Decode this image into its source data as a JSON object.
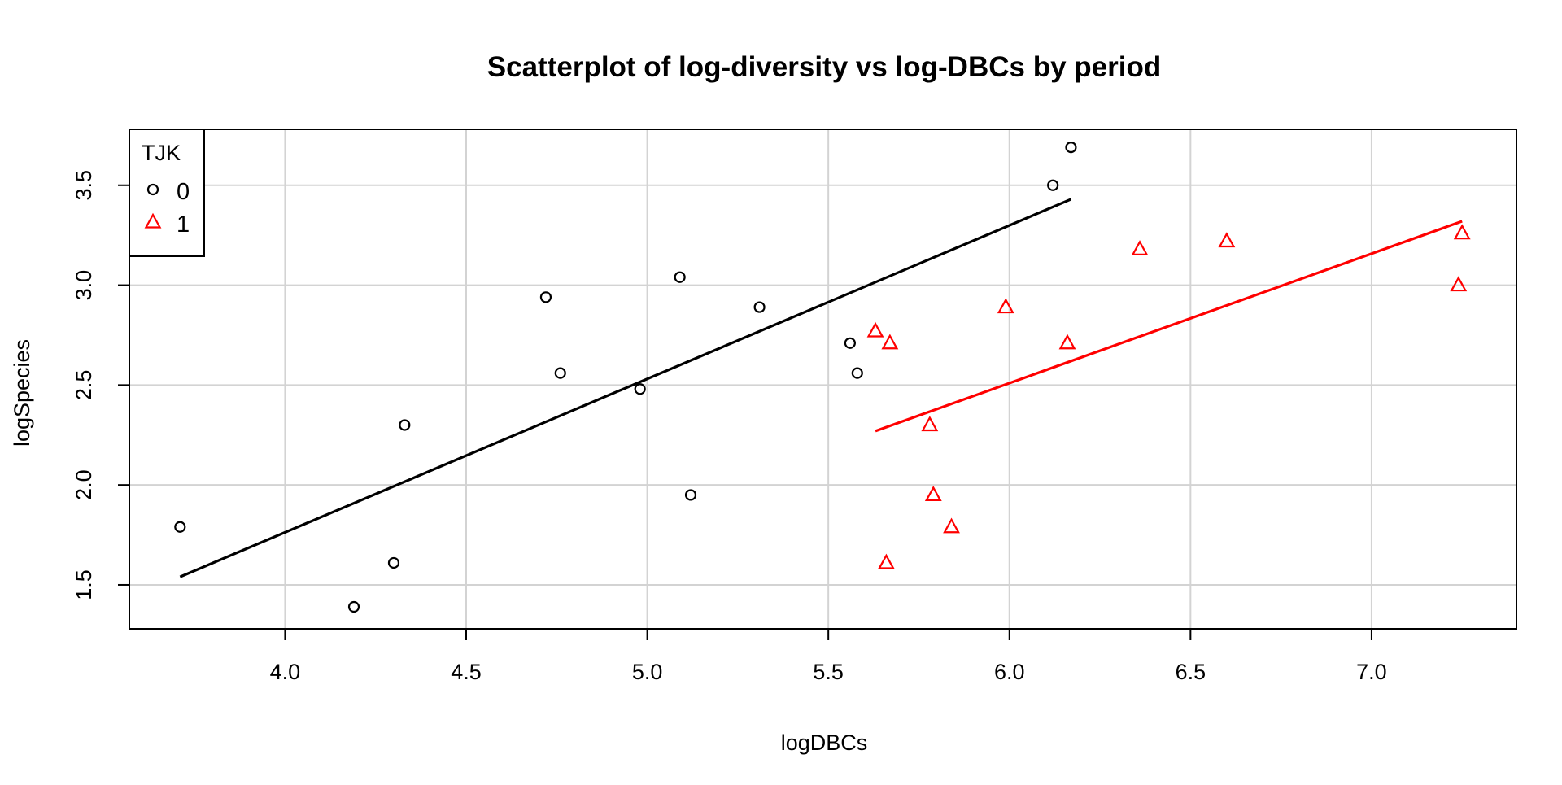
{
  "chart_data": {
    "type": "scatter",
    "title": "Scatterplot of log-diversity vs log-DBCs by period",
    "xlabel": "logDBCs",
    "ylabel": "logSpecies",
    "xlim": [
      3.57,
      7.4
    ],
    "ylim": [
      1.28,
      3.78
    ],
    "x_ticks": [
      4.0,
      4.5,
      5.0,
      5.5,
      6.0,
      6.5,
      7.0
    ],
    "x_tick_labels": [
      "4.0",
      "4.5",
      "5.0",
      "5.5",
      "6.0",
      "6.5",
      "7.0"
    ],
    "y_ticks": [
      1.5,
      2.0,
      2.5,
      3.0,
      3.5
    ],
    "y_tick_labels": [
      "1.5",
      "2.0",
      "2.5",
      "3.0",
      "3.5"
    ],
    "grid": true,
    "legend": {
      "title": "TJK",
      "position": "top-left"
    },
    "series": [
      {
        "name": "0",
        "color": "#000000",
        "marker": "circle",
        "x": [
          3.71,
          4.19,
          4.3,
          4.33,
          4.72,
          4.76,
          4.98,
          5.09,
          5.12,
          5.31,
          5.56,
          5.58,
          6.12,
          6.17
        ],
        "y": [
          1.79,
          1.39,
          1.61,
          2.3,
          2.94,
          2.56,
          2.48,
          3.04,
          1.95,
          2.89,
          2.71,
          2.56,
          3.5,
          3.69
        ],
        "fit": {
          "x": [
            3.71,
            6.17
          ],
          "y": [
            1.54,
            3.43
          ]
        }
      },
      {
        "name": "1",
        "color": "#ff0000",
        "marker": "triangle",
        "x": [
          5.63,
          5.66,
          5.67,
          5.78,
          5.79,
          5.84,
          5.99,
          6.16,
          6.36,
          6.6,
          7.24,
          7.25
        ],
        "y": [
          2.77,
          1.61,
          2.71,
          2.3,
          1.95,
          1.79,
          2.89,
          2.71,
          3.18,
          3.22,
          3.0,
          3.26
        ],
        "fit": {
          "x": [
            5.63,
            7.25
          ],
          "y": [
            2.27,
            3.32
          ]
        }
      }
    ]
  }
}
